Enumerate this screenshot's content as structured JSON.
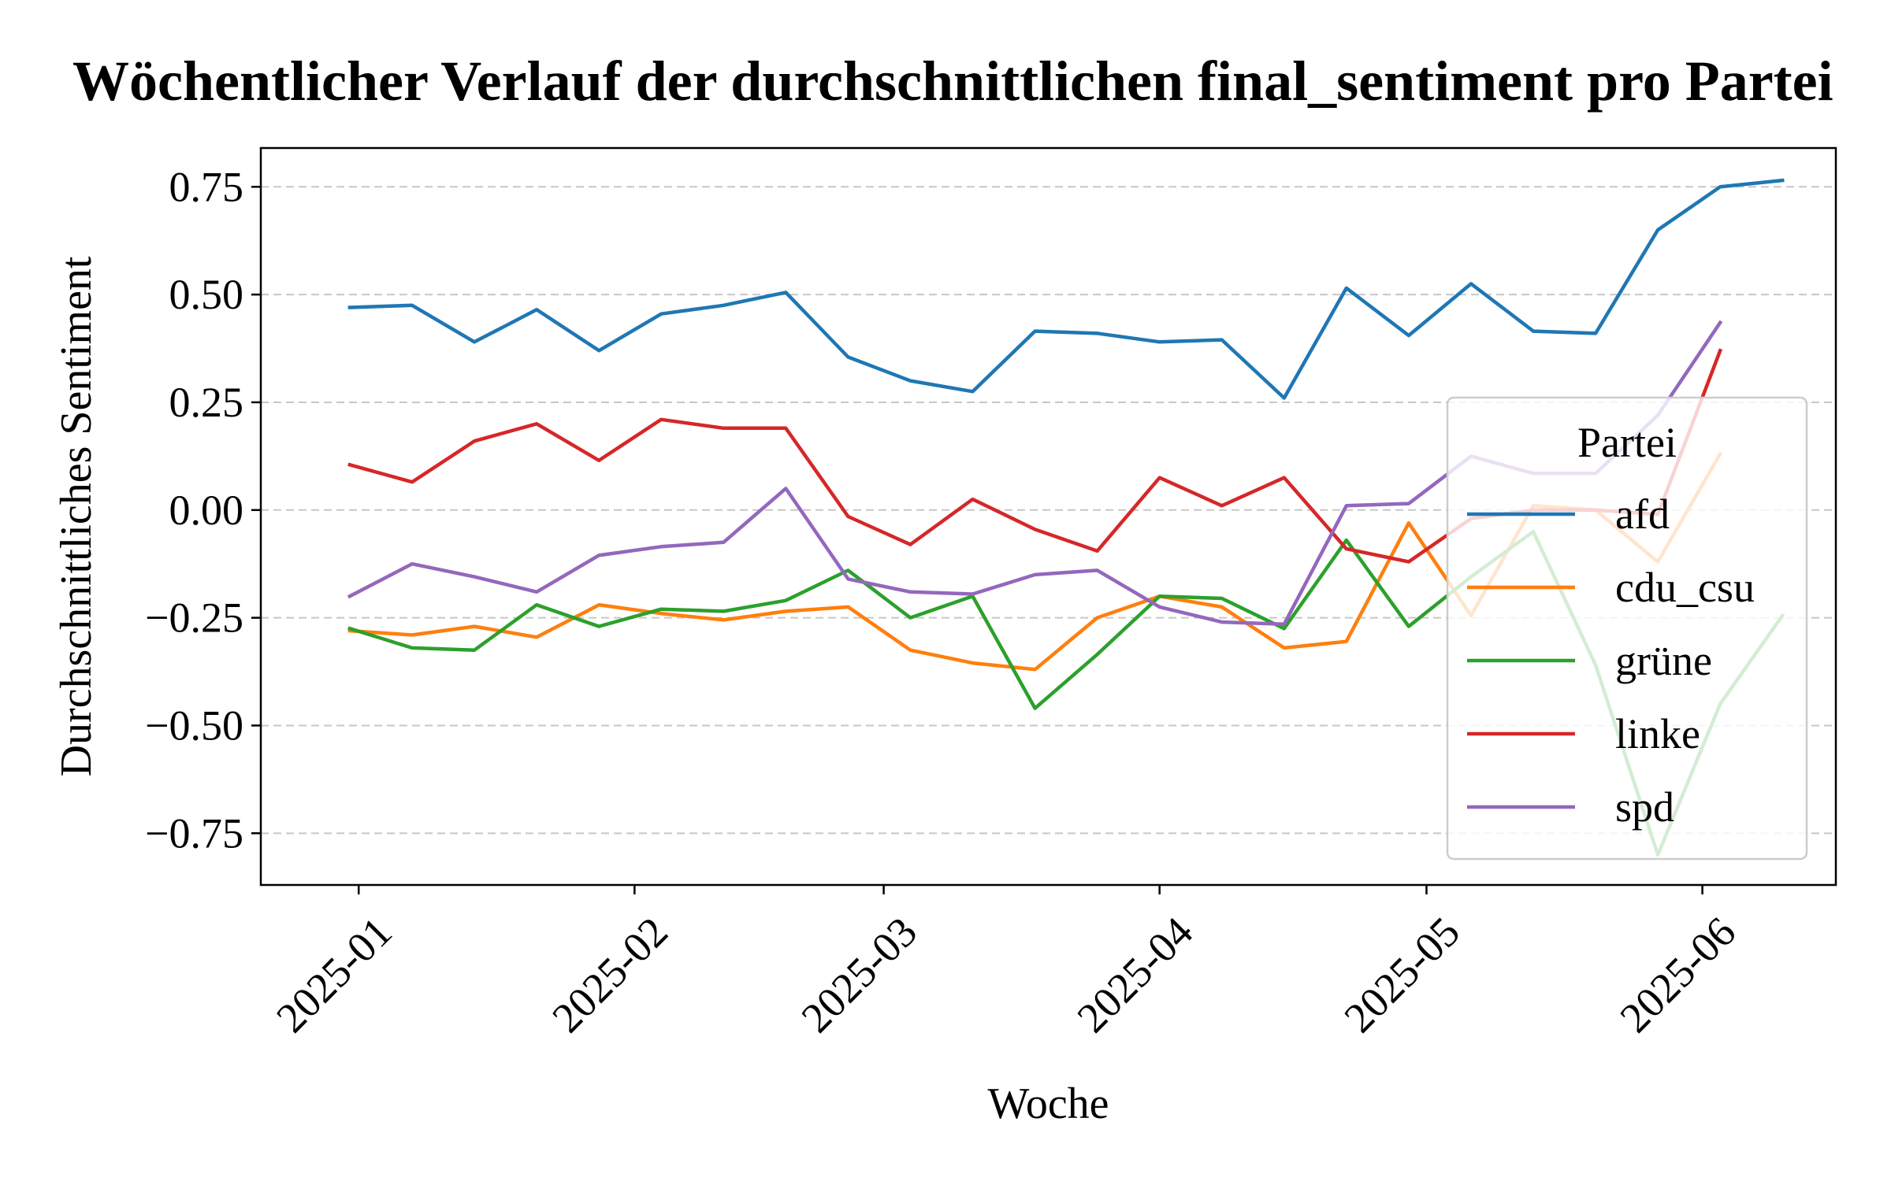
{
  "chart_data": {
    "type": "line",
    "title": "Wöchentlicher Verlauf der durchschnittlichen final_sentiment pro Partei",
    "xlabel": "Woche",
    "ylabel": "Durchschnittliches Sentiment",
    "x_tick_labels": [
      "2025-01",
      "2025-02",
      "2025-03",
      "2025-04",
      "2025-05",
      "2025-06"
    ],
    "x_tick_dates": [
      "2025-01-01",
      "2025-02-01",
      "2025-03-01",
      "2025-04-01",
      "2025-05-01",
      "2025-06-01"
    ],
    "x_range": [
      "2024-12-21",
      "2025-06-16"
    ],
    "ylim": [
      -0.87,
      0.84
    ],
    "y_ticks": [
      0.75,
      0.5,
      0.25,
      0.0,
      -0.25,
      -0.5,
      -0.75
    ],
    "y_tick_labels": [
      "0.75",
      "0.50",
      "0.25",
      "0.00",
      "−0.25",
      "−0.50",
      "−0.75"
    ],
    "grid": "y-dashed",
    "legend": {
      "title": "Partei",
      "placement": "center-right"
    },
    "x": [
      "2024-12-31",
      "2025-01-07",
      "2025-01-14",
      "2025-01-21",
      "2025-01-28",
      "2025-02-04",
      "2025-02-11",
      "2025-02-18",
      "2025-02-25",
      "2025-03-04",
      "2025-03-11",
      "2025-03-18",
      "2025-03-25",
      "2025-04-01",
      "2025-04-08",
      "2025-04-15",
      "2025-04-22",
      "2025-04-29",
      "2025-05-06",
      "2025-05-13",
      "2025-05-20",
      "2025-05-27",
      "2025-06-03",
      "2025-06-10"
    ],
    "series": [
      {
        "name": "afd",
        "color": "#1f77b4",
        "values": [
          0.47,
          0.475,
          0.39,
          0.465,
          0.37,
          0.455,
          0.475,
          0.505,
          0.355,
          0.3,
          0.275,
          0.415,
          0.41,
          0.39,
          0.395,
          0.26,
          0.515,
          0.405,
          0.525,
          0.415,
          0.41,
          0.65,
          0.75,
          0.765
        ]
      },
      {
        "name": "cdu_csu",
        "color": "#ff7f0e",
        "values": [
          -0.28,
          -0.29,
          -0.27,
          -0.295,
          -0.22,
          -0.24,
          -0.255,
          -0.235,
          -0.225,
          -0.325,
          -0.355,
          -0.37,
          -0.25,
          -0.2,
          -0.225,
          -0.32,
          -0.305,
          -0.03,
          -0.245,
          0.01,
          0.0,
          -0.12,
          0.13,
          null
        ]
      },
      {
        "name": "grüne",
        "color": "#2ca02c",
        "values": [
          -0.275,
          -0.32,
          -0.325,
          -0.22,
          -0.27,
          -0.23,
          -0.235,
          -0.21,
          -0.14,
          -0.25,
          -0.2,
          -0.46,
          -0.335,
          -0.2,
          -0.205,
          -0.275,
          -0.07,
          -0.27,
          -0.155,
          -0.05,
          -0.36,
          -0.8,
          -0.45,
          -0.245
        ]
      },
      {
        "name": "linke",
        "color": "#d62728",
        "values": [
          0.105,
          0.065,
          0.16,
          0.2,
          0.115,
          0.21,
          0.19,
          0.19,
          -0.015,
          -0.08,
          0.025,
          -0.045,
          -0.095,
          0.075,
          0.01,
          0.075,
          -0.09,
          -0.12,
          -0.02,
          0.0,
          0.0,
          -0.01,
          0.37,
          null
        ]
      },
      {
        "name": "spd",
        "color": "#9467bd",
        "values": [
          -0.2,
          -0.125,
          -0.155,
          -0.19,
          -0.105,
          -0.085,
          -0.075,
          0.05,
          -0.16,
          -0.19,
          -0.195,
          -0.15,
          -0.14,
          -0.225,
          -0.26,
          -0.265,
          0.01,
          0.015,
          0.125,
          0.085,
          0.085,
          0.22,
          0.435,
          null
        ]
      }
    ]
  }
}
